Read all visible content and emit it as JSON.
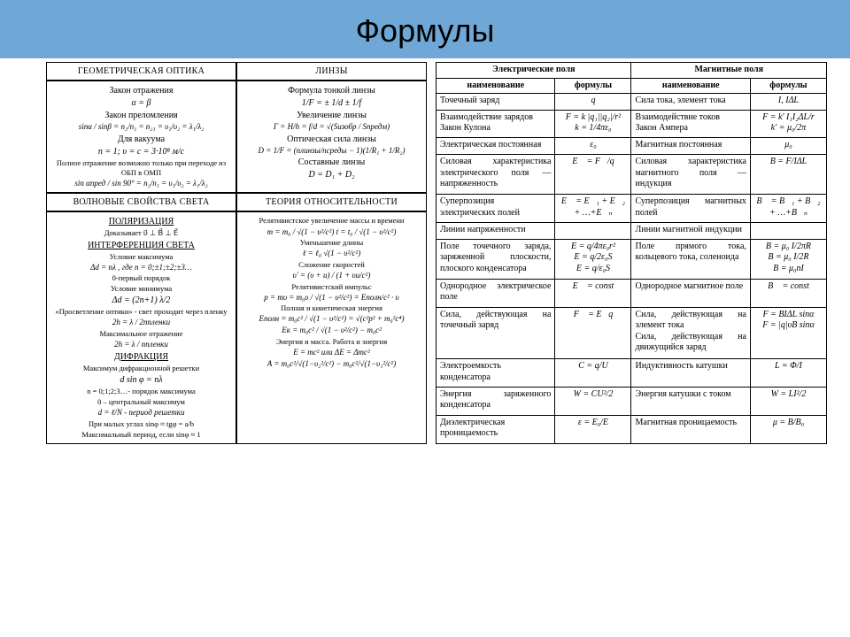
{
  "title": "Формулы",
  "left": {
    "h1": "ГЕОМЕТРИЧЕСКАЯ ОПТИКА",
    "h2": "ЛИНЗЫ",
    "h3": "ВОЛНОВЫЕ СВОЙСТВА СВЕТА",
    "h4": "ТЕОРИЯ ОТНОСИТЕЛЬНОСТИ",
    "c1": {
      "l1": "Закон отражения",
      "f1": "α = β",
      "l2": "Закон преломления",
      "f2": "sinα / sinβ = n₂/n₁ = n₂₁ = υ₁/υ₂ = λ₁/λ₂",
      "l3": "Для вакуума",
      "f3": "n = 1;    υ = c = 3·10⁸ м/с",
      "l4": "Полное отражение возможно только при переходе из ОБП в ОМП",
      "f4": "sin αпред / sin 90° = n₂/n₁ = υ₁/υ₂ = λ₁/λ₂"
    },
    "c2": {
      "l1": "Формула тонкой линзы",
      "f1": "1/F = ± 1/d ± 1/f",
      "l2": "Увеличение линзы",
      "f2": "Г = H/h = f/d = √(Sизобр / Sпредм)",
      "l3": "Оптическая сила линзы",
      "f3": "D = 1/F = (nлинзы/nсреды − 1)(1/R₁ + 1/R₂)",
      "l4": "Составные линзы",
      "f4": "D = D₁ + D₂"
    },
    "c3": {
      "pol": "ПОЛЯРИЗАЦИЯ",
      "l1": "Доказывает  υ⃗ ⊥ B⃗ ⊥ E⃗",
      "int": "ИНТЕРФЕРЕНЦИЯ СВЕТА",
      "l2": "Условие максимума",
      "f2": "Δd = nλ , где  n = 0;±1;±2;±3…",
      "l3": "0-первый порядок",
      "l4": "Условие минимума",
      "f4": "Δd = (2n+1) λ/2",
      "l5": "«Просветление оптики» - свет проходит через пленку",
      "f5": "2h = λ / 2nпленки",
      "l6": "Максимальное отражение",
      "f6": "2h = λ / nпленки",
      "dif": "ДИФРАКЦИЯ",
      "l7": "Максимум дифракционной решетки",
      "f7": "d sin φ = nλ",
      "l8": "n = 0;1;2;3…- порядок максимума",
      "l9": "0 – центральный максимум",
      "f9": "d = ℓ/N  - период решетки",
      "l10": "При малых углах  sinφ ≈ tgφ = a/b",
      "l11": "Максимальный период, если sinφ ≈ 1"
    },
    "c4": {
      "l1": "Релятивистское увеличение массы и времени",
      "f1": "m = m₀ / √(1 − υ²/c²)      t = t₀ / √(1 − υ²/c²)",
      "l2": "Уменьшение длины",
      "f2": "ℓ = ℓ₀ √(1 − υ²/c²)",
      "l3": "Сложение скоростей",
      "f3": "υ' = (υ + u) / (1 + υu/c²)",
      "l4": "Релятивистский импульс",
      "f4": "p = mυ = m₀υ / √(1 − υ²/c²) = Eполн/c² · υ",
      "l5": "Полная и кинетическая энергия",
      "f5": "Eполн = m₀c² / √(1 − υ²/c²) = √(c²p² + m₀²c⁴)",
      "f6": "Eк = m₀c² / √(1 − υ²/c²) − m₀c²",
      "l6": "Энергия и масса. Работа и энергия",
      "f7": "E = mc²   или   ΔE = Δmc²",
      "f8": "A = m₀c²/√(1−υ₂²/c²) − m₀c²/√(1−υ₁²/c²)"
    }
  },
  "right": {
    "h1": "Электрические поля",
    "h2": "Магнитные поля",
    "sh1": "наименование",
    "sh2": "формулы",
    "rows": [
      {
        "en": "Точечный заряд",
        "ef": "q",
        "mn": "Сила тока, элемент тока",
        "mf": "I, IΔL"
      },
      {
        "en": "Взаимодействие зарядов\nЗакон Кулона",
        "ef": "F = k |q₁||q₂|/r²\nk = 1/4πε₀",
        "mn": "Взаимодействие токов\nЗакон Ампера",
        "mf": "F = k' I₁I₂ΔL/r\nk' = μ₀/2π"
      },
      {
        "en": "Электрическая постоянная",
        "ef": "ε₀",
        "mn": "Магнитная постоянная",
        "mf": "μ₀"
      },
      {
        "en": "Силовая характеристика электрического поля — напряженность",
        "ef": "E⃗ = F⃗/q",
        "mn": "Силовая характеристика магнитного поля — индукция",
        "mf": "B = F/IΔL"
      },
      {
        "en": "Суперпозиция электрических полей",
        "ef": "E⃗ = E⃗₁ + E⃗₂ + …+E⃗ₙ",
        "mn": "Суперпозиция магнитных полей",
        "mf": "B⃗ = B⃗₁ + B⃗₂ + …+B⃗ₙ"
      },
      {
        "en": "Линии напряженности",
        "ef": "",
        "mn": "Линии магнитной индукции",
        "mf": ""
      },
      {
        "en": "Поле точечного заряда, заряженной плоскости, плоского конденсатора",
        "ef": "E = q/4πε₀r²\nE = q/2ε₀S\nE = q/ε₀S",
        "mn": "Поле прямого тока, кольцевого тока, соленоида",
        "mf": "B = μ₀ I/2πR\nB = μ₀ I/2R\nB = μ₀nI"
      },
      {
        "en": "Однородное электрическое поле",
        "ef": "E⃗ = const",
        "mn": "Однородное магнитное поле",
        "mf": "B⃗ = const"
      },
      {
        "en": "Сила, действующая на точечный заряд",
        "ef": "F⃗ = E⃗q",
        "mn": "Сила, действующая на элемент тока\nСила, действующая на движущийся заряд",
        "mf": "F = BIΔL sinα\nF = |q|υB sinα"
      },
      {
        "en": "Электроемкость конденсатора",
        "ef": "C = q/U",
        "mn": "Индуктивность катушки",
        "mf": "L = Φ/I"
      },
      {
        "en": "Энергия заряженного конденсатора",
        "ef": "W = CU²/2",
        "mn": "Энергия катушки с током",
        "mf": "W = LI²/2"
      },
      {
        "en": "Диэлектрическая проницаемость",
        "ef": "ε = E₀/E",
        "mn": "Магнитная проницаемость",
        "mf": "μ = B/B₀"
      }
    ]
  },
  "colors": {
    "title_bg": "#6fa8d6",
    "border": "#000000",
    "bg": "#ffffff"
  }
}
